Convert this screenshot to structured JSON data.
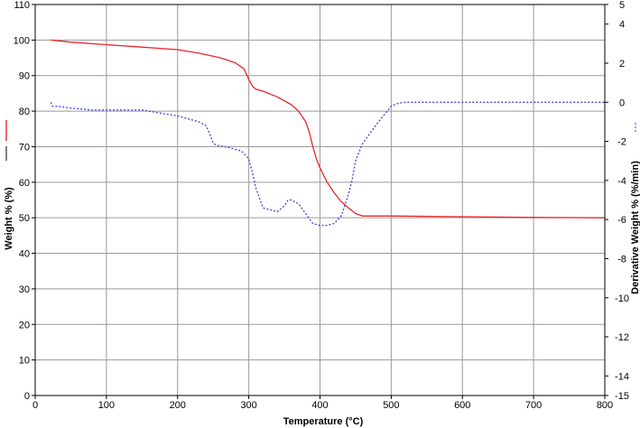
{
  "chart_data": {
    "type": "line",
    "xlabel": "Temperature (°C)",
    "ylabel_left": "Weight % (%)",
    "ylabel_right": "Derivative Weight % (%/min)",
    "xlim": [
      0,
      800
    ],
    "ylim_left": [
      0,
      110
    ],
    "ylim_right": [
      -15,
      5
    ],
    "x_ticks": [
      0,
      100,
      200,
      300,
      400,
      500,
      600,
      700,
      800
    ],
    "y_left_ticks": [
      0,
      10,
      20,
      30,
      40,
      50,
      60,
      70,
      80,
      90,
      100,
      110
    ],
    "y_right_ticks": [
      -15,
      -14,
      -12,
      -10,
      -8,
      -6,
      -4,
      -2,
      0,
      2,
      4,
      5
    ],
    "grid": true,
    "series": [
      {
        "axis": "left",
        "color": "#e8262b",
        "style": "solid",
        "x": [
          22,
          50,
          100,
          150,
          200,
          230,
          260,
          280,
          293,
          300,
          305,
          310,
          320,
          340,
          360,
          370,
          380,
          385,
          390,
          395,
          400,
          410,
          420,
          430,
          440,
          450,
          460,
          470,
          500,
          600,
          700,
          800
        ],
        "y": [
          100.0,
          99.4,
          98.7,
          98.0,
          97.3,
          96.3,
          95.0,
          93.7,
          92.0,
          89.0,
          87.0,
          86.2,
          85.6,
          84.0,
          81.8,
          80.0,
          77.0,
          74.0,
          70.0,
          66.5,
          64.0,
          60.0,
          57.0,
          54.5,
          52.8,
          51.2,
          50.5,
          50.5,
          50.5,
          50.3,
          50.1,
          50.0
        ]
      },
      {
        "axis": "right",
        "color": "#3b43d6",
        "style": "dashed",
        "x": [
          22,
          24,
          30,
          50,
          80,
          100,
          150,
          200,
          230,
          240,
          245,
          250,
          255,
          270,
          290,
          300,
          305,
          310,
          320,
          330,
          340,
          350,
          355,
          360,
          370,
          380,
          390,
          400,
          410,
          420,
          430,
          440,
          445,
          450,
          460,
          480,
          500,
          510,
          520,
          600,
          700,
          800
        ],
        "y": [
          0.0,
          -0.2,
          -0.2,
          -0.3,
          -0.4,
          -0.4,
          -0.4,
          -0.7,
          -1.0,
          -1.2,
          -1.6,
          -2.1,
          -2.2,
          -2.3,
          -2.5,
          -2.9,
          -3.6,
          -4.4,
          -5.4,
          -5.5,
          -5.6,
          -5.3,
          -5.0,
          -5.0,
          -5.2,
          -5.7,
          -6.2,
          -6.3,
          -6.3,
          -6.2,
          -5.8,
          -4.7,
          -4.0,
          -3.0,
          -2.1,
          -1.1,
          -0.2,
          -0.05,
          0.0,
          0.0,
          0.0,
          0.0
        ]
      }
    ]
  }
}
